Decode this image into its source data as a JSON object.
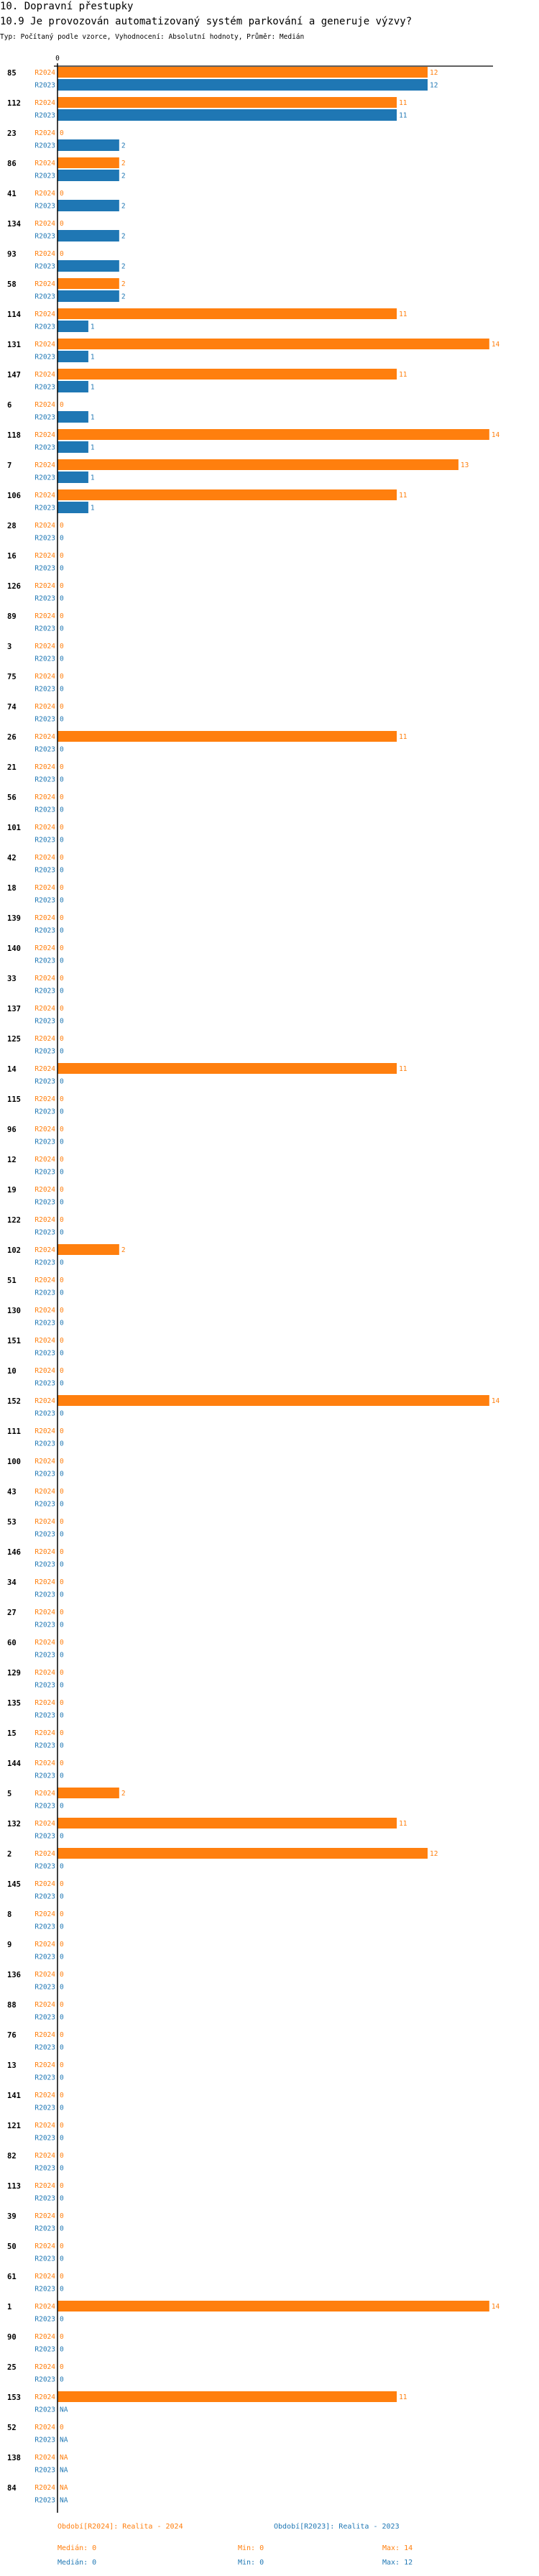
{
  "header": {
    "section": "10. Dopravní přestupky",
    "question": "10.9 Je provozován automatizovaný systém parkování a generuje výzvy?",
    "meta": "Typ: Počítaný podle vzorce, Vyhodnocení: Absolutní hodnoty, Průměr: Medián"
  },
  "colors": {
    "R2024": "#ff7f0e",
    "R2023": "#1f77b4"
  },
  "chart_data": {
    "type": "bar",
    "orientation": "horizontal",
    "xlim": [
      0,
      14
    ],
    "x_ticks": [
      "0"
    ],
    "categories": [
      "85",
      "112",
      "23",
      "86",
      "41",
      "134",
      "93",
      "58",
      "114",
      "131",
      "147",
      "6",
      "118",
      "7",
      "106",
      "28",
      "16",
      "126",
      "89",
      "3",
      "75",
      "74",
      "26",
      "21",
      "56",
      "101",
      "42",
      "18",
      "139",
      "140",
      "33",
      "137",
      "125",
      "14",
      "115",
      "96",
      "12",
      "19",
      "122",
      "102",
      "51",
      "130",
      "151",
      "10",
      "152",
      "111",
      "100",
      "43",
      "53",
      "146",
      "34",
      "27",
      "60",
      "129",
      "135",
      "15",
      "144",
      "5",
      "132",
      "2",
      "145",
      "8",
      "9",
      "136",
      "88",
      "76",
      "13",
      "141",
      "121",
      "82",
      "113",
      "39",
      "50",
      "61",
      "1",
      "90",
      "25",
      "153",
      "52",
      "138",
      "84"
    ],
    "series": [
      {
        "name": "R2024",
        "values": [
          12,
          11,
          0,
          2,
          0,
          0,
          0,
          2,
          11,
          14,
          11,
          0,
          14,
          13,
          11,
          0,
          0,
          0,
          0,
          0,
          0,
          0,
          11,
          0,
          0,
          0,
          0,
          0,
          0,
          0,
          0,
          0,
          0,
          11,
          0,
          0,
          0,
          0,
          0,
          2,
          0,
          0,
          0,
          0,
          14,
          0,
          0,
          0,
          0,
          0,
          0,
          0,
          0,
          0,
          0,
          0,
          0,
          2,
          11,
          12,
          0,
          0,
          0,
          0,
          0,
          0,
          0,
          0,
          0,
          0,
          0,
          0,
          0,
          0,
          14,
          0,
          0,
          11,
          0,
          "NA",
          "NA"
        ]
      },
      {
        "name": "R2023",
        "values": [
          12,
          11,
          2,
          2,
          2,
          2,
          2,
          2,
          1,
          1,
          1,
          1,
          1,
          1,
          1,
          0,
          0,
          0,
          0,
          0,
          0,
          0,
          0,
          0,
          0,
          0,
          0,
          0,
          0,
          0,
          0,
          0,
          0,
          0,
          0,
          0,
          0,
          0,
          0,
          0,
          0,
          0,
          0,
          0,
          0,
          0,
          0,
          0,
          0,
          0,
          0,
          0,
          0,
          0,
          0,
          0,
          0,
          0,
          0,
          0,
          0,
          0,
          0,
          0,
          0,
          0,
          0,
          0,
          0,
          0,
          0,
          0,
          0,
          0,
          0,
          0,
          0,
          "NA",
          "NA",
          "NA",
          "NA"
        ]
      }
    ],
    "legend": [
      {
        "label": "Období[R2024]: Realita - 2024",
        "median": "Medián: 0",
        "min": "Min: 0",
        "max": "Max: 14"
      },
      {
        "label": "Období[R2023]: Realita - 2023",
        "median": "Medián: 0",
        "min": "Min: 0",
        "max": "Max: 12"
      }
    ],
    "legend_placement": "bottom"
  }
}
